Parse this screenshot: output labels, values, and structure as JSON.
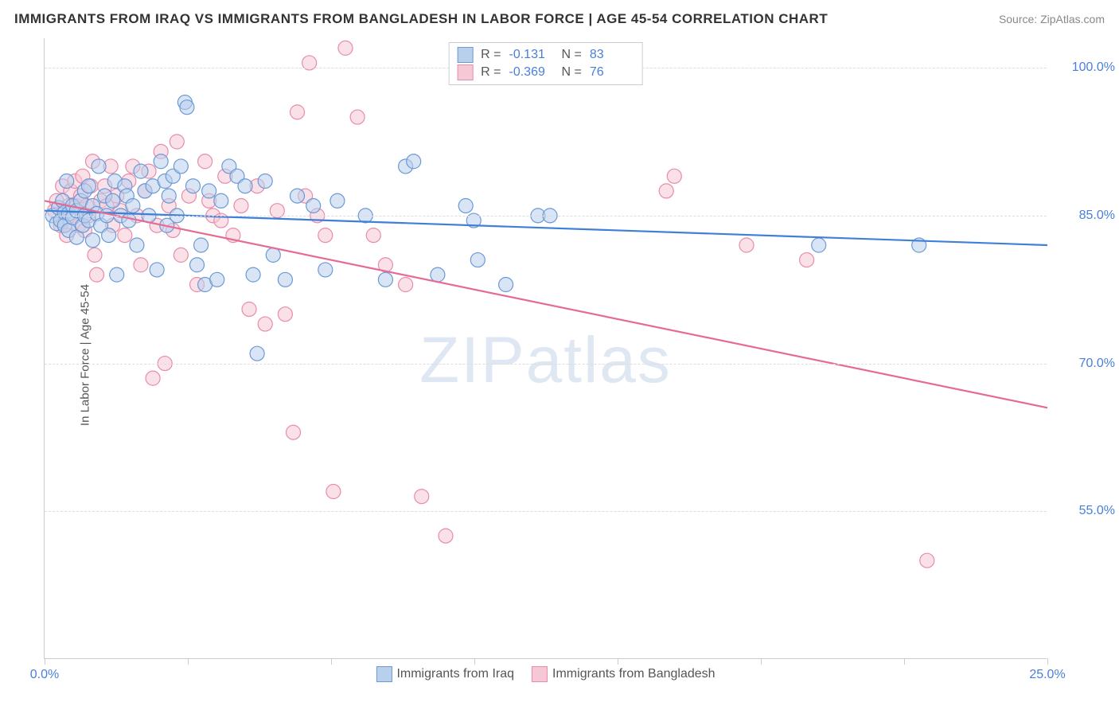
{
  "title": "IMMIGRANTS FROM IRAQ VS IMMIGRANTS FROM BANGLADESH IN LABOR FORCE | AGE 45-54 CORRELATION CHART",
  "source_label": "Source: ZipAtlas.com",
  "y_axis_label": "In Labor Force | Age 45-54",
  "watermark_a": "ZIP",
  "watermark_b": "atlas",
  "chart": {
    "type": "scatter",
    "xlim": [
      0,
      25
    ],
    "ylim": [
      40,
      103
    ],
    "y_ticks": [
      55.0,
      70.0,
      85.0,
      100.0
    ],
    "y_tick_labels": [
      "55.0%",
      "70.0%",
      "85.0%",
      "100.0%"
    ],
    "x_ticks": [
      0,
      3.57,
      7.14,
      10.71,
      14.29,
      17.86,
      21.43,
      25
    ],
    "x_tick_labels": {
      "first": "0.0%",
      "last": "25.0%"
    },
    "background_color": "#ffffff",
    "grid_color": "#dddddd",
    "axis_color": "#cccccc",
    "tick_label_color": "#4a7fd8",
    "marker_radius": 9,
    "marker_stroke_width": 1.2,
    "line_width": 2.2,
    "series": [
      {
        "name": "Immigrants from Iraq",
        "fill": "#b9d0ec",
        "stroke": "#6a9ad6",
        "fill_opacity": 0.55,
        "line_color": "#3f7fd8",
        "R": "-0.131",
        "N": "83",
        "trend": {
          "x1": 0.0,
          "y1": 85.5,
          "x2": 25.0,
          "y2": 82.0
        },
        "points": [
          [
            0.2,
            85.0
          ],
          [
            0.3,
            84.2
          ],
          [
            0.35,
            85.8
          ],
          [
            0.4,
            84.5
          ],
          [
            0.45,
            86.5
          ],
          [
            0.5,
            85.3
          ],
          [
            0.5,
            84.0
          ],
          [
            0.55,
            88.5
          ],
          [
            0.6,
            83.5
          ],
          [
            0.6,
            85.2
          ],
          [
            0.7,
            84.8
          ],
          [
            0.7,
            86.0
          ],
          [
            0.8,
            85.5
          ],
          [
            0.8,
            82.8
          ],
          [
            0.9,
            86.5
          ],
          [
            0.95,
            84.0
          ],
          [
            1.0,
            85.0
          ],
          [
            1.0,
            87.5
          ],
          [
            1.1,
            88.0
          ],
          [
            1.1,
            84.5
          ],
          [
            1.2,
            82.5
          ],
          [
            1.2,
            86.0
          ],
          [
            1.3,
            85.2
          ],
          [
            1.35,
            90.0
          ],
          [
            1.4,
            84.0
          ],
          [
            1.5,
            87.0
          ],
          [
            1.55,
            85.0
          ],
          [
            1.6,
            83.0
          ],
          [
            1.7,
            86.5
          ],
          [
            1.75,
            88.5
          ],
          [
            1.8,
            79.0
          ],
          [
            1.9,
            85.0
          ],
          [
            2.0,
            88.0
          ],
          [
            2.05,
            87.0
          ],
          [
            2.1,
            84.5
          ],
          [
            2.2,
            86.0
          ],
          [
            2.3,
            82.0
          ],
          [
            2.4,
            89.5
          ],
          [
            2.5,
            87.5
          ],
          [
            2.6,
            85.0
          ],
          [
            2.7,
            88.0
          ],
          [
            2.8,
            79.5
          ],
          [
            2.9,
            90.5
          ],
          [
            3.0,
            88.5
          ],
          [
            3.05,
            84.0
          ],
          [
            3.1,
            87.0
          ],
          [
            3.2,
            89.0
          ],
          [
            3.3,
            85.0
          ],
          [
            3.4,
            90.0
          ],
          [
            3.5,
            96.5
          ],
          [
            3.55,
            96.0
          ],
          [
            3.7,
            88.0
          ],
          [
            3.8,
            80.0
          ],
          [
            3.9,
            82.0
          ],
          [
            4.0,
            78.0
          ],
          [
            4.1,
            87.5
          ],
          [
            4.3,
            78.5
          ],
          [
            4.4,
            86.5
          ],
          [
            4.6,
            90.0
          ],
          [
            4.8,
            89.0
          ],
          [
            5.0,
            88.0
          ],
          [
            5.2,
            79.0
          ],
          [
            5.3,
            71.0
          ],
          [
            5.5,
            88.5
          ],
          [
            5.7,
            81.0
          ],
          [
            6.0,
            78.5
          ],
          [
            6.3,
            87.0
          ],
          [
            6.7,
            86.0
          ],
          [
            7.0,
            79.5
          ],
          [
            7.3,
            86.5
          ],
          [
            8.0,
            85.0
          ],
          [
            8.5,
            78.5
          ],
          [
            9.0,
            90.0
          ],
          [
            9.2,
            90.5
          ],
          [
            9.8,
            79.0
          ],
          [
            10.5,
            86.0
          ],
          [
            10.7,
            84.5
          ],
          [
            10.8,
            80.5
          ],
          [
            11.5,
            78.0
          ],
          [
            12.3,
            85.0
          ],
          [
            12.6,
            85.0
          ],
          [
            19.3,
            82.0
          ],
          [
            21.8,
            82.0
          ]
        ]
      },
      {
        "name": "Immigrants from Bangladesh",
        "fill": "#f6c8d6",
        "stroke": "#e98bab",
        "fill_opacity": 0.55,
        "line_color": "#e56b95",
        "R": "-0.369",
        "N": "76",
        "trend": {
          "x1": 0.0,
          "y1": 86.5,
          "x2": 25.0,
          "y2": 65.5
        },
        "points": [
          [
            0.25,
            85.5
          ],
          [
            0.3,
            86.5
          ],
          [
            0.4,
            84.0
          ],
          [
            0.45,
            88.0
          ],
          [
            0.5,
            85.5
          ],
          [
            0.55,
            83.0
          ],
          [
            0.6,
            86.0
          ],
          [
            0.65,
            87.5
          ],
          [
            0.7,
            85.0
          ],
          [
            0.75,
            88.5
          ],
          [
            0.8,
            86.0
          ],
          [
            0.85,
            84.0
          ],
          [
            0.9,
            87.0
          ],
          [
            0.95,
            89.0
          ],
          [
            1.0,
            83.5
          ],
          [
            1.05,
            86.0
          ],
          [
            1.1,
            85.0
          ],
          [
            1.15,
            88.0
          ],
          [
            1.2,
            90.5
          ],
          [
            1.25,
            81.0
          ],
          [
            1.3,
            79.0
          ],
          [
            1.4,
            86.5
          ],
          [
            1.5,
            88.0
          ],
          [
            1.55,
            86.0
          ],
          [
            1.65,
            90.0
          ],
          [
            1.7,
            84.0
          ],
          [
            1.8,
            87.0
          ],
          [
            1.9,
            85.5
          ],
          [
            2.0,
            83.0
          ],
          [
            2.1,
            88.5
          ],
          [
            2.2,
            90.0
          ],
          [
            2.3,
            85.0
          ],
          [
            2.4,
            80.0
          ],
          [
            2.5,
            87.5
          ],
          [
            2.6,
            89.5
          ],
          [
            2.7,
            68.5
          ],
          [
            2.8,
            84.0
          ],
          [
            2.9,
            91.5
          ],
          [
            3.0,
            70.0
          ],
          [
            3.1,
            86.0
          ],
          [
            3.2,
            83.5
          ],
          [
            3.3,
            92.5
          ],
          [
            3.4,
            81.0
          ],
          [
            3.6,
            87.0
          ],
          [
            3.8,
            78.0
          ],
          [
            4.0,
            90.5
          ],
          [
            4.1,
            86.5
          ],
          [
            4.2,
            85.0
          ],
          [
            4.4,
            84.5
          ],
          [
            4.5,
            89.0
          ],
          [
            4.7,
            83.0
          ],
          [
            4.9,
            86.0
          ],
          [
            5.1,
            75.5
          ],
          [
            5.3,
            88.0
          ],
          [
            5.5,
            74.0
          ],
          [
            5.8,
            85.5
          ],
          [
            6.0,
            75.0
          ],
          [
            6.2,
            63.0
          ],
          [
            6.3,
            95.5
          ],
          [
            6.5,
            87.0
          ],
          [
            6.6,
            100.5
          ],
          [
            6.8,
            85.0
          ],
          [
            7.0,
            83.0
          ],
          [
            7.2,
            57.0
          ],
          [
            7.5,
            102.0
          ],
          [
            7.8,
            95.0
          ],
          [
            8.2,
            83.0
          ],
          [
            8.5,
            80.0
          ],
          [
            9.0,
            78.0
          ],
          [
            9.4,
            56.5
          ],
          [
            10.0,
            52.5
          ],
          [
            15.5,
            87.5
          ],
          [
            15.7,
            89.0
          ],
          [
            17.5,
            82.0
          ],
          [
            19.0,
            80.5
          ],
          [
            22.0,
            50.0
          ]
        ]
      }
    ]
  }
}
